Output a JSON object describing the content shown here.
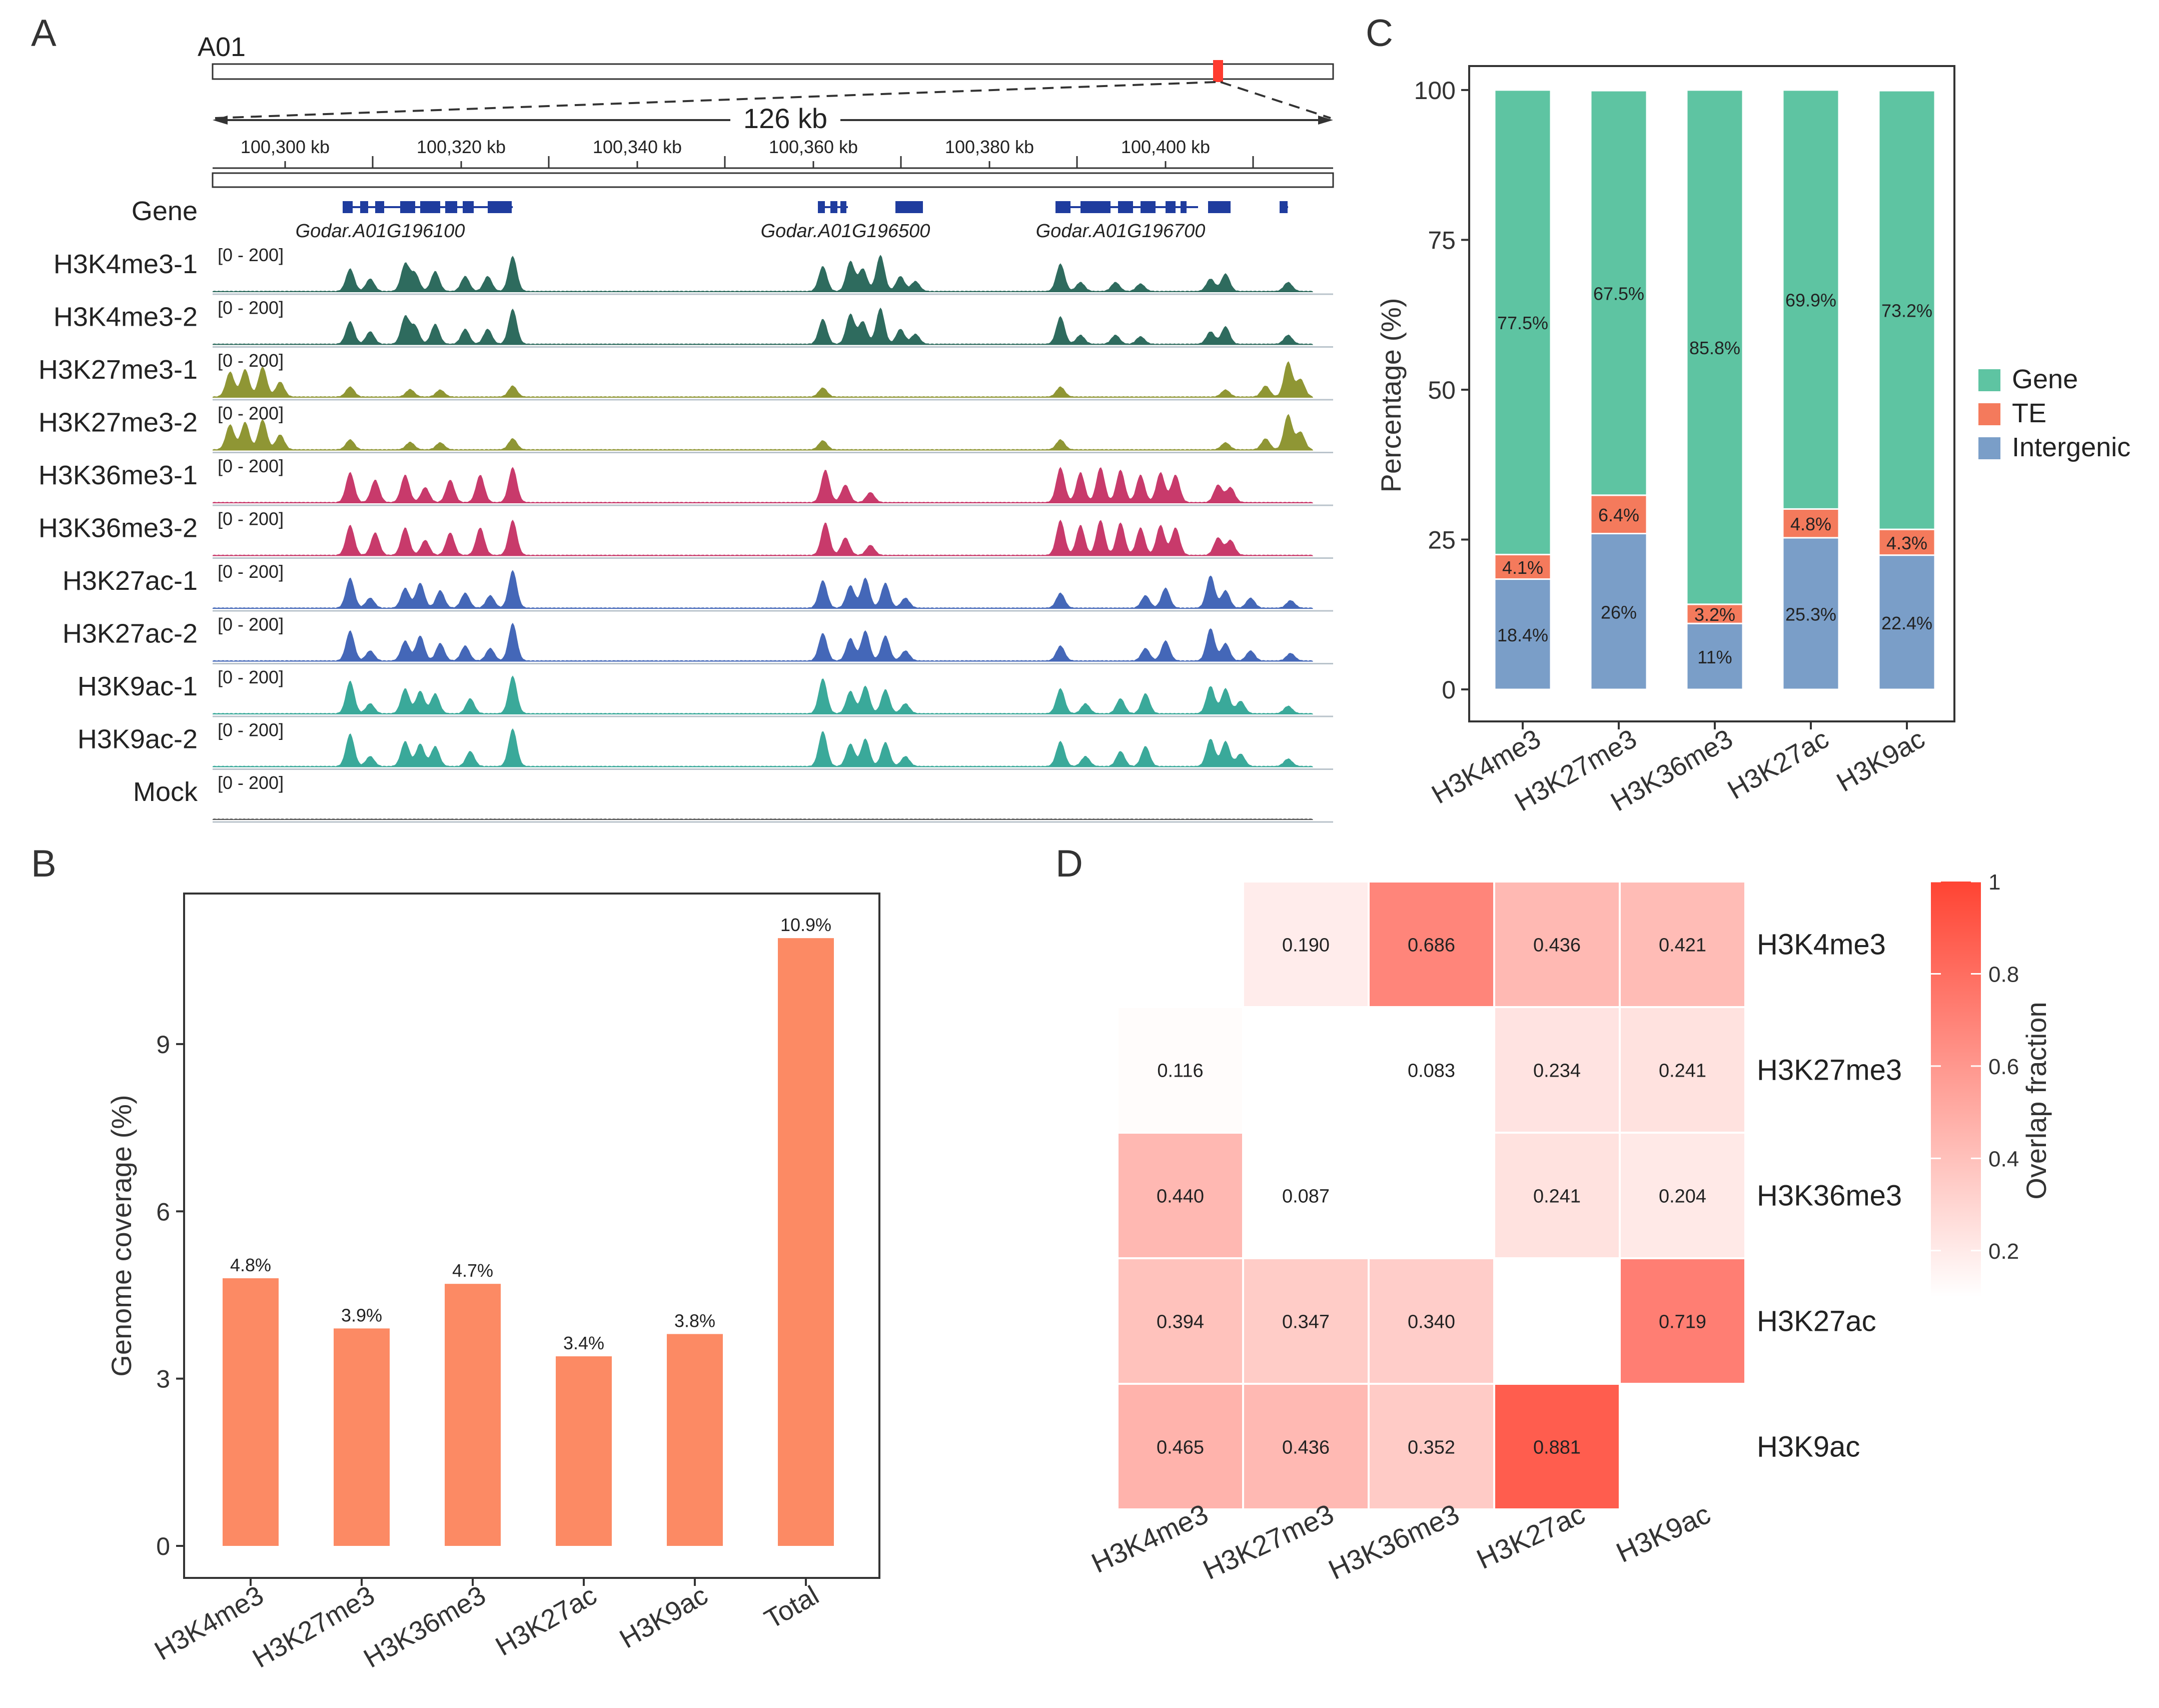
{
  "panel_letters": {
    "a": "A",
    "b": "B",
    "c": "C",
    "d": "D"
  },
  "colors": {
    "h3k4me3": "#2e6b5e",
    "h3k27me3": "#8f9634",
    "h3k36me3": "#c83a6b",
    "h3k27ac": "#4467b8",
    "h3k9ac": "#3aa99a",
    "mock": "#555555",
    "gene_feature": "#1f3c9e",
    "highlight": "#ff3b2f",
    "bar_orange": "#fc8a64",
    "gene_green": "#5ec4a2",
    "te_orange": "#f47a5c",
    "intergenic_blue": "#7a9ec8",
    "heat_high": "#ff4433"
  },
  "panel_a": {
    "chromosome": "A01",
    "span_label": "126 kb",
    "ruler_ticks": [
      "100,300 kb",
      "100,320 kb",
      "100,340 kb",
      "100,360 kb",
      "100,380 kb",
      "100,400 kb"
    ],
    "gene_track_label": "Gene",
    "gene_names": [
      "Godar.A01G196100",
      "Godar.A01G196500",
      "Godar.A01G196700"
    ],
    "tracks": [
      {
        "label": "H3K4me3-1",
        "range": "[0 - 200]",
        "mark": "h3k4me3"
      },
      {
        "label": "H3K4me3-2",
        "range": "[0 - 200]",
        "mark": "h3k4me3"
      },
      {
        "label": "H3K27me3-1",
        "range": "[0 - 200]",
        "mark": "h3k27me3"
      },
      {
        "label": "H3K27me3-2",
        "range": "[0 - 200]",
        "mark": "h3k27me3"
      },
      {
        "label": "H3K36me3-1",
        "range": "[0 - 200]",
        "mark": "h3k36me3"
      },
      {
        "label": "H3K36me3-2",
        "range": "[0 - 200]",
        "mark": "h3k36me3"
      },
      {
        "label": "H3K27ac-1",
        "range": "[0 - 200]",
        "mark": "h3k27ac"
      },
      {
        "label": "H3K27ac-2",
        "range": "[0 - 200]",
        "mark": "h3k27ac"
      },
      {
        "label": "H3K9ac-1",
        "range": "[0 - 200]",
        "mark": "h3k9ac"
      },
      {
        "label": "H3K9ac-2",
        "range": "[0 - 200]",
        "mark": "h3k9ac"
      },
      {
        "label": "Mock",
        "range": "[0 - 200]",
        "mark": "mock"
      }
    ]
  },
  "chart_data": [
    {
      "panel": "B",
      "type": "bar",
      "title": "",
      "xlabel": "",
      "ylabel": "Genome coverage (%)",
      "categories": [
        "H3K4me3",
        "H3K27me3",
        "H3K36me3",
        "H3K27ac",
        "H3K9ac",
        "Total"
      ],
      "values": [
        4.8,
        3.9,
        4.7,
        3.4,
        3.8,
        10.9
      ],
      "data_labels": [
        "4.8%",
        "3.9%",
        "4.7%",
        "3.4%",
        "3.8%",
        "10.9%"
      ],
      "yticks": [
        "0",
        "3",
        "6",
        "9"
      ],
      "ylim": [
        0,
        11.7
      ],
      "grid": false
    },
    {
      "panel": "C",
      "type": "bar",
      "stacked": true,
      "title": "",
      "xlabel": "",
      "ylabel": "Percentage (%)",
      "categories": [
        "H3K4me3",
        "H3K27me3",
        "H3K36me3",
        "H3K27ac",
        "H3K9ac"
      ],
      "series": [
        {
          "name": "Intergenic",
          "values": [
            18.4,
            26,
            11,
            25.3,
            22.4
          ],
          "labels": [
            "18.4%",
            "26%",
            "11%",
            "25.3%",
            "22.4%"
          ]
        },
        {
          "name": "TE",
          "values": [
            4.1,
            6.4,
            3.2,
            4.8,
            4.3
          ],
          "labels": [
            "4.1%",
            "6.4%",
            "3.2%",
            "4.8%",
            "4.3%"
          ]
        },
        {
          "name": "Gene",
          "values": [
            77.5,
            67.5,
            85.8,
            69.9,
            73.2
          ],
          "labels": [
            "77.5%",
            "67.5%",
            "85.8%",
            "69.9%",
            "73.2%"
          ]
        }
      ],
      "legend_order": [
        "Gene",
        "TE",
        "Intergenic"
      ],
      "legend_position": "right",
      "yticks": [
        "0",
        "25",
        "50",
        "75",
        "100"
      ],
      "ylim": [
        0,
        104
      ],
      "grid": false
    },
    {
      "panel": "D",
      "type": "heatmap",
      "title": "",
      "columns": [
        "H3K4me3",
        "H3K27me3",
        "H3K36me3",
        "H3K27ac",
        "H3K9ac"
      ],
      "rows": [
        "H3K4me3",
        "H3K27me3",
        "H3K36me3",
        "H3K27ac",
        "H3K9ac"
      ],
      "values": [
        [
          null,
          0.19,
          0.686,
          0.436,
          0.421
        ],
        [
          0.116,
          null,
          0.083,
          0.234,
          0.241
        ],
        [
          0.44,
          0.087,
          null,
          0.241,
          0.204
        ],
        [
          0.394,
          0.347,
          0.34,
          null,
          0.719
        ],
        [
          0.465,
          0.436,
          0.352,
          0.881,
          null
        ]
      ],
      "labels": [
        [
          "",
          "0.190",
          "0.686",
          "0.436",
          "0.421"
        ],
        [
          "0.116",
          "",
          "0.083",
          "0.234",
          "0.241"
        ],
        [
          "0.440",
          "0.087",
          "",
          "0.241",
          "0.204"
        ],
        [
          "0.394",
          "0.347",
          "0.340",
          "",
          "0.719"
        ],
        [
          "0.465",
          "0.436",
          "0.352",
          "0.881",
          ""
        ]
      ],
      "colorbar_title": "Overlap fraction",
      "colorbar_ticks": [
        {
          "value": 1,
          "label": "1"
        },
        {
          "value": 0.8,
          "label": "0.8"
        },
        {
          "value": 0.6,
          "label": "0.6"
        },
        {
          "value": 0.4,
          "label": "0.4"
        },
        {
          "value": 0.2,
          "label": "0.2"
        }
      ],
      "color_range": [
        0.1,
        1
      ]
    }
  ]
}
